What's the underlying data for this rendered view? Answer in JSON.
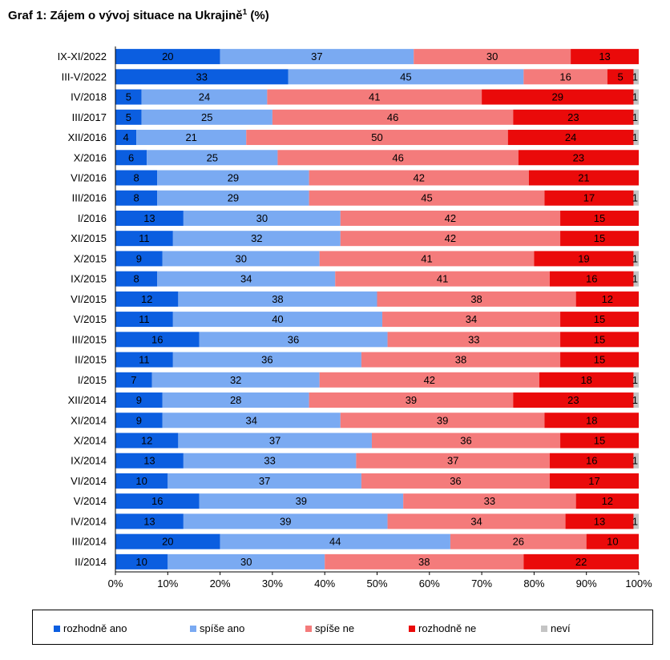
{
  "chart_data": {
    "type": "bar",
    "orientation": "horizontal",
    "stacked": true,
    "title": "Graf 1: Zájem o vývoj situace na Ukrajině",
    "title_superscript": "1",
    "title_suffix": "(%)",
    "categories": [
      "IX-XI/2022",
      "III-V/2022",
      "IV/2018",
      "III/2017",
      "XII/2016",
      "X/2016",
      "VI/2016",
      "III/2016",
      "I/2016",
      "XI/2015",
      "X/2015",
      "IX/2015",
      "VI/2015",
      "V/2015",
      "III/2015",
      "II/2015",
      "I/2015",
      "XII/2014",
      "XI/2014",
      "X/2014",
      "IX/2014",
      "VI/2014",
      "V/2014",
      "IV/2014",
      "III/2014",
      "II/2014"
    ],
    "series": [
      {
        "name": "rozhodně ano",
        "color": "#0b5ee0",
        "values": [
          20,
          33,
          5,
          5,
          4,
          6,
          8,
          8,
          13,
          11,
          9,
          8,
          12,
          11,
          16,
          11,
          7,
          9,
          9,
          12,
          13,
          10,
          16,
          13,
          20,
          10
        ]
      },
      {
        "name": "spíše ano",
        "color": "#7aaaf2",
        "values": [
          37,
          45,
          24,
          25,
          21,
          25,
          29,
          29,
          30,
          32,
          30,
          34,
          38,
          40,
          36,
          36,
          32,
          28,
          34,
          37,
          33,
          37,
          39,
          39,
          44,
          30
        ]
      },
      {
        "name": "spíše ne",
        "color": "#f47b7b",
        "values": [
          30,
          16,
          41,
          46,
          50,
          46,
          42,
          45,
          42,
          42,
          41,
          41,
          38,
          34,
          33,
          38,
          42,
          39,
          39,
          36,
          37,
          36,
          33,
          34,
          26,
          38
        ]
      },
      {
        "name": "rozhodně ne",
        "color": "#ea0a0a",
        "values": [
          13,
          5,
          29,
          23,
          24,
          23,
          21,
          17,
          15,
          15,
          19,
          16,
          12,
          15,
          15,
          15,
          18,
          23,
          18,
          15,
          16,
          17,
          12,
          13,
          10,
          22
        ]
      },
      {
        "name": "neví",
        "color": "#c4c4c4",
        "values": [
          0,
          1,
          1,
          1,
          1,
          0,
          0,
          1,
          0,
          0,
          1,
          1,
          0,
          0,
          0,
          0,
          1,
          1,
          0,
          0,
          1,
          0,
          0,
          1,
          0,
          0
        ]
      }
    ],
    "xaxis": {
      "ticks": [
        "0%",
        "10%",
        "20%",
        "30%",
        "40%",
        "50%",
        "60%",
        "70%",
        "80%",
        "90%",
        "100%"
      ],
      "range": [
        0,
        100
      ]
    },
    "grid": false,
    "legend_position": "bottom"
  }
}
